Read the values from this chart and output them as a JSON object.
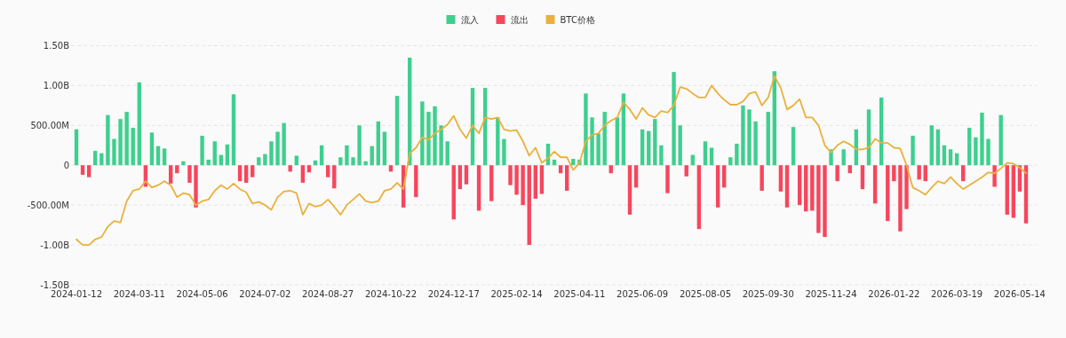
{
  "chart_data": {
    "type": "bar",
    "legend": "top",
    "grid": "y",
    "categories": [
      "2024-01-12",
      null,
      null,
      null,
      null,
      null,
      null,
      null,
      null,
      null,
      "2024-03-11",
      null,
      null,
      null,
      null,
      null,
      null,
      null,
      null,
      null,
      "2024-05-06",
      null,
      null,
      null,
      null,
      null,
      null,
      null,
      null,
      null,
      "2024-07-02",
      null,
      null,
      null,
      null,
      null,
      null,
      null,
      null,
      null,
      "2024-08-27",
      null,
      null,
      null,
      null,
      null,
      null,
      null,
      null,
      null,
      "2024-10-22",
      null,
      null,
      null,
      null,
      null,
      null,
      null,
      null,
      null,
      "2024-12-17",
      null,
      null,
      null,
      null,
      null,
      null,
      null,
      null,
      null,
      "2025-02-14",
      null,
      null,
      null,
      null,
      null,
      null,
      null,
      null,
      null,
      "2025-04-11",
      null,
      null,
      null,
      null,
      null,
      null,
      null,
      null,
      null,
      "2025-06-09",
      null,
      null,
      null,
      null,
      null,
      null,
      null,
      null,
      null,
      "2025-08-05",
      null,
      null,
      null,
      null,
      null,
      null,
      null,
      null,
      null,
      "2025-09-30",
      null,
      null,
      null,
      null,
      null,
      null,
      null,
      null,
      null,
      "2025-11-24",
      null,
      null,
      null,
      null,
      null,
      null,
      null,
      null,
      null,
      "2026-01-22",
      null,
      null,
      null,
      null,
      null,
      null,
      null,
      null,
      null,
      "2026-03-19",
      null,
      null,
      null,
      null,
      null,
      null,
      null,
      null,
      null,
      "2026-05-14",
      null
    ],
    "ylim": [
      -1500000000,
      1500000000
    ],
    "yticks": [
      {
        "value": -1500000000,
        "label": "-1.50B"
      },
      {
        "value": -1000000000,
        "label": "-1.00B"
      },
      {
        "value": -500000000,
        "label": "-500.00M"
      },
      0,
      {
        "value": 500000000,
        "label": "500.00M"
      },
      {
        "value": 1000000000,
        "label": "1.00B"
      },
      {
        "value": 1500000000,
        "label": "1.50B"
      }
    ],
    "series": [
      {
        "name": "流入",
        "color": "#3ecf8e",
        "values": [
          450000000,
          null,
          null,
          180000000,
          150000000,
          630000000,
          330000000,
          580000000,
          670000000,
          470000000,
          1040000000,
          null,
          410000000,
          240000000,
          210000000,
          null,
          null,
          50000000,
          null,
          null,
          370000000,
          70000000,
          300000000,
          130000000,
          260000000,
          890000000,
          null,
          null,
          null,
          100000000,
          140000000,
          300000000,
          420000000,
          530000000,
          null,
          120000000,
          null,
          null,
          60000000,
          250000000,
          null,
          null,
          100000000,
          250000000,
          100000000,
          500000000,
          50000000,
          240000000,
          550000000,
          420000000,
          null,
          870000000,
          null,
          1350000000,
          null,
          800000000,
          670000000,
          740000000,
          500000000,
          300000000,
          null,
          null,
          null,
          970000000,
          null,
          970000000,
          null,
          600000000,
          330000000,
          null,
          null,
          null,
          null,
          null,
          null,
          270000000,
          70000000,
          null,
          null,
          80000000,
          70000000,
          900000000,
          600000000,
          400000000,
          670000000,
          null,
          600000000,
          900000000,
          null,
          null,
          450000000,
          430000000,
          580000000,
          250000000,
          null,
          1170000000,
          500000000,
          null,
          130000000,
          null,
          300000000,
          220000000,
          null,
          null,
          100000000,
          270000000,
          750000000,
          700000000,
          550000000,
          null,
          670000000,
          1180000000,
          null,
          null,
          480000000,
          null,
          null,
          null,
          null,
          null,
          200000000,
          null,
          200000000,
          null,
          450000000,
          null,
          700000000,
          null,
          850000000,
          null,
          null,
          null,
          null,
          370000000,
          null,
          null,
          500000000,
          450000000,
          250000000,
          200000000,
          150000000,
          null,
          470000000,
          350000000,
          660000000,
          330000000,
          null,
          630000000,
          null,
          null,
          null,
          null
        ]
      },
      {
        "name": "流出",
        "color": "#f6465d",
        "values": [
          null,
          -120000000,
          -150000000,
          null,
          null,
          null,
          null,
          null,
          null,
          null,
          null,
          -270000000,
          null,
          null,
          null,
          -230000000,
          -100000000,
          null,
          -220000000,
          -530000000,
          null,
          null,
          null,
          null,
          null,
          null,
          -200000000,
          -220000000,
          -150000000,
          null,
          null,
          null,
          null,
          null,
          -80000000,
          null,
          -220000000,
          -90000000,
          null,
          null,
          -150000000,
          -290000000,
          null,
          null,
          null,
          null,
          null,
          null,
          null,
          null,
          -80000000,
          null,
          -530000000,
          null,
          -400000000,
          null,
          null,
          null,
          null,
          null,
          -680000000,
          -300000000,
          -240000000,
          null,
          -570000000,
          null,
          -450000000,
          null,
          null,
          -250000000,
          -370000000,
          -500000000,
          -1000000000,
          -420000000,
          -360000000,
          null,
          null,
          -100000000,
          -320000000,
          null,
          null,
          null,
          null,
          null,
          null,
          -100000000,
          null,
          null,
          -620000000,
          -280000000,
          null,
          null,
          null,
          null,
          -350000000,
          null,
          null,
          -140000000,
          null,
          -800000000,
          null,
          null,
          -530000000,
          -280000000,
          null,
          null,
          null,
          null,
          null,
          -320000000,
          null,
          null,
          -330000000,
          -530000000,
          null,
          -500000000,
          -580000000,
          -570000000,
          -850000000,
          -900000000,
          null,
          -200000000,
          null,
          -100000000,
          null,
          -300000000,
          null,
          -480000000,
          null,
          -700000000,
          -200000000,
          -830000000,
          -550000000,
          null,
          -180000000,
          -200000000,
          null,
          null,
          null,
          null,
          null,
          -200000000,
          null,
          null,
          null,
          null,
          -270000000,
          null,
          -620000000,
          -660000000,
          -330000000,
          -730000000
        ]
      },
      {
        "name": "BTC价格",
        "type": "line",
        "color": "#e9b13c",
        "values": [
          -930000000,
          -1000000000,
          -1000000000,
          -930000000,
          -900000000,
          -770000000,
          -700000000,
          -720000000,
          -450000000,
          -320000000,
          -300000000,
          -200000000,
          -280000000,
          -250000000,
          -200000000,
          -250000000,
          -400000000,
          -350000000,
          -370000000,
          -500000000,
          -450000000,
          -430000000,
          -320000000,
          -250000000,
          -300000000,
          -230000000,
          -300000000,
          -340000000,
          -480000000,
          -460000000,
          -500000000,
          -560000000,
          -400000000,
          -330000000,
          -320000000,
          -350000000,
          -620000000,
          -480000000,
          -520000000,
          -500000000,
          -430000000,
          -520000000,
          -620000000,
          -500000000,
          -430000000,
          -360000000,
          -450000000,
          -470000000,
          -450000000,
          -320000000,
          -300000000,
          -220000000,
          -300000000,
          150000000,
          220000000,
          350000000,
          320000000,
          400000000,
          450000000,
          510000000,
          620000000,
          450000000,
          340000000,
          500000000,
          400000000,
          600000000,
          580000000,
          600000000,
          450000000,
          430000000,
          440000000,
          300000000,
          120000000,
          220000000,
          30000000,
          90000000,
          170000000,
          100000000,
          100000000,
          -60000000,
          30000000,
          300000000,
          380000000,
          400000000,
          500000000,
          560000000,
          600000000,
          790000000,
          700000000,
          580000000,
          720000000,
          630000000,
          600000000,
          680000000,
          660000000,
          750000000,
          980000000,
          960000000,
          900000000,
          850000000,
          850000000,
          1000000000,
          900000000,
          820000000,
          760000000,
          760000000,
          800000000,
          900000000,
          920000000,
          750000000,
          850000000,
          1120000000,
          970000000,
          700000000,
          750000000,
          830000000,
          600000000,
          600000000,
          500000000,
          250000000,
          160000000,
          250000000,
          300000000,
          260000000,
          200000000,
          200000000,
          220000000,
          330000000,
          280000000,
          280000000,
          220000000,
          210000000,
          0,
          -280000000,
          -320000000,
          -370000000,
          -280000000,
          -200000000,
          -230000000,
          -150000000,
          -230000000,
          -300000000,
          -250000000,
          -200000000,
          -150000000,
          -90000000,
          -100000000,
          -40000000,
          30000000,
          20000000,
          -30000000,
          -100000000
        ]
      }
    ]
  }
}
